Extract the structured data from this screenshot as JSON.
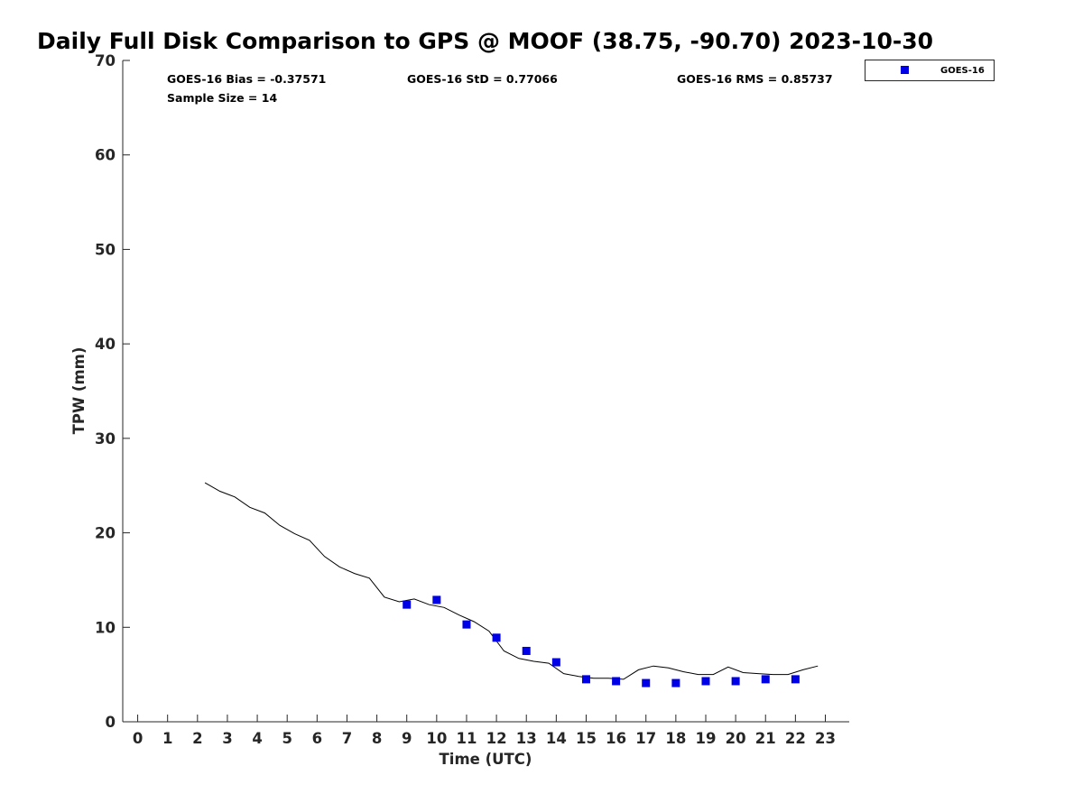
{
  "chart_data": {
    "type": "scatter",
    "title": "Daily Full Disk Comparison to GPS @ MOOF (38.75, -90.70) 2023-10-30",
    "xlabel": "Time (UTC)",
    "ylabel": "TPW (mm)",
    "xlim": [
      -0.5,
      23.8
    ],
    "ylim": [
      0,
      70
    ],
    "x_ticks": [
      "0",
      "1",
      "2",
      "3",
      "4",
      "5",
      "6",
      "7",
      "8",
      "9",
      "10",
      "11",
      "12",
      "13",
      "14",
      "15",
      "16",
      "17",
      "18",
      "19",
      "20",
      "21",
      "22",
      "23"
    ],
    "y_ticks": [
      "0",
      "10",
      "20",
      "30",
      "40",
      "50",
      "60",
      "70"
    ],
    "grid": false,
    "legend_position": "outside-top-right",
    "stats": {
      "bias": "GOES-16 Bias = -0.37571",
      "std": "GOES-16 StD = 0.77066",
      "rms": "GOES-16 RMS = 0.85737",
      "sample": "Sample Size = 14"
    },
    "series": [
      {
        "name": "GOES-16",
        "kind": "scatter",
        "color": "#0000e6",
        "marker": "square",
        "x": [
          9,
          10,
          11,
          12,
          13,
          14,
          15,
          16,
          17,
          18,
          19,
          20,
          21,
          22
        ],
        "y": [
          12.4,
          12.9,
          10.3,
          8.9,
          7.5,
          6.3,
          4.5,
          4.3,
          4.1,
          4.1,
          4.3,
          4.3,
          4.5,
          4.5
        ]
      },
      {
        "kind": "line",
        "color": "#000000",
        "x": [
          2.25,
          2.75,
          3.25,
          3.75,
          4.25,
          4.75,
          5.25,
          5.75,
          6.25,
          6.75,
          7.25,
          7.75,
          8.25,
          8.75,
          9.25,
          9.75,
          10.25,
          10.75,
          11.25,
          11.75,
          12.25,
          12.75,
          13.25,
          13.75,
          14.25,
          14.75,
          15.25,
          15.75,
          16.25,
          16.75,
          17.25,
          17.75,
          18.25,
          18.75,
          19.25,
          19.75,
          20.25,
          20.75,
          21.25,
          21.75,
          22.25,
          22.75
        ],
        "y": [
          25.3,
          24.4,
          23.8,
          22.7,
          22.1,
          20.8,
          19.9,
          19.2,
          17.5,
          16.4,
          15.7,
          15.2,
          13.2,
          12.7,
          13.0,
          12.4,
          12.1,
          11.3,
          10.6,
          9.6,
          7.5,
          6.7,
          6.4,
          6.2,
          5.1,
          4.8,
          4.6,
          4.6,
          4.5,
          5.5,
          5.9,
          5.7,
          5.3,
          5.0,
          5.0,
          5.8,
          5.2,
          5.1,
          5.0,
          5.0,
          5.5,
          5.9
        ]
      }
    ]
  }
}
